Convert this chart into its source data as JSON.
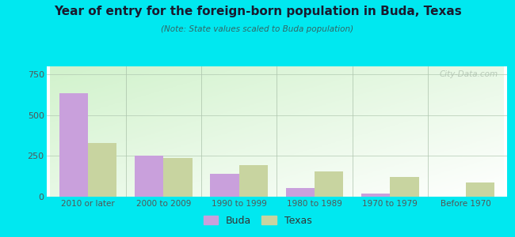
{
  "title": "Year of entry for the foreign-born population in Buda, Texas",
  "subtitle": "(Note: State values scaled to Buda population)",
  "categories": [
    "2010 or later",
    "2000 to 2009",
    "1990 to 1999",
    "1980 to 1989",
    "1970 to 1979",
    "Before 1970"
  ],
  "buda_values": [
    635,
    250,
    140,
    55,
    18,
    0
  ],
  "texas_values": [
    330,
    240,
    195,
    155,
    120,
    85
  ],
  "buda_color": "#c9a0dc",
  "texas_color": "#c8d4a0",
  "background_outer": "#00e8f0",
  "background_plot_top": "#c8e8c0",
  "background_plot_bottom": "#f5fff5",
  "ylim": [
    0,
    800
  ],
  "yticks": [
    0,
    250,
    500,
    750
  ],
  "bar_width": 0.38,
  "legend_labels": [
    "Buda",
    "Texas"
  ],
  "watermark": "City-Data.com",
  "title_color": "#1a1a2e",
  "subtitle_color": "#336666",
  "tick_color": "#555555"
}
